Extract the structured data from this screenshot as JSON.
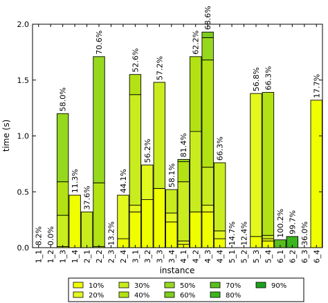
{
  "chart_data": {
    "type": "bar",
    "stacked": true,
    "title": "",
    "xlabel": "instance",
    "ylabel": "time (s)",
    "ylim": [
      0,
      2.0
    ],
    "yticks": [
      "0.0",
      "0.5",
      "1.0",
      "1.5",
      "2.0"
    ],
    "grid": false,
    "legend_position": "bottom",
    "categories": [
      "1_1",
      "1_2",
      "1_3",
      "1_4",
      "2_1",
      "2_2",
      "2_3",
      "2_4",
      "3_1",
      "3_2",
      "3_3",
      "3_4",
      "4_1",
      "4_2",
      "4_3",
      "4_4",
      "5_1",
      "5_2",
      "5_3",
      "5_4",
      "6_1",
      "6_2",
      "6_3",
      "6_4"
    ],
    "labels": [
      "8.2%",
      "0.0%",
      "58.0%",
      "11.3%",
      "37.6%",
      "70.6%",
      "13.2%",
      "44.1%",
      "52.6%",
      "56.2%",
      "57.2%",
      "58.1%",
      "81.4%",
      "62.2%",
      "68.6%",
      "66.3%",
      "14.7%",
      "12.4%",
      "56.8%",
      "66.3%",
      "100.2%",
      "99.7%",
      "36.0%",
      "17.7%"
    ],
    "series": [
      {
        "name": "10%",
        "color": "#f0ff00",
        "values": [
          0,
          0,
          0.01,
          0.47,
          0,
          0,
          0,
          0.08,
          0.32,
          0.43,
          0.53,
          0.23,
          0.03,
          0.32,
          0.32,
          0.08,
          0,
          0,
          0.1,
          0.06,
          0,
          0,
          0,
          1.32
        ]
      },
      {
        "name": "20%",
        "color": "#e3f81e",
        "values": [
          0,
          0,
          0,
          0,
          0,
          0,
          0,
          0.39,
          0.06,
          0.31,
          0,
          0.08,
          0.03,
          0,
          0.06,
          0.07,
          0,
          0,
          1.28,
          0.02,
          0,
          0,
          0,
          0
        ]
      },
      {
        "name": "30%",
        "color": "#c8ec1e",
        "values": [
          0,
          0,
          0.28,
          0,
          0.32,
          0.01,
          0,
          0,
          0.99,
          0,
          0.95,
          0.21,
          0.53,
          0.72,
          0.34,
          0.61,
          0,
          0,
          0,
          0.03,
          0,
          0,
          0,
          0
        ]
      },
      {
        "name": "40%",
        "color": "#b3e214",
        "values": [
          0,
          0,
          0.3,
          0,
          0,
          0.57,
          0,
          0,
          0.18,
          0,
          0,
          0,
          0.18,
          0.67,
          0.96,
          0,
          0,
          0,
          0,
          1.28,
          0,
          0,
          0,
          0
        ]
      },
      {
        "name": "50%",
        "color": "#96d81e",
        "values": [
          0,
          0,
          0.61,
          0,
          0,
          1.13,
          0,
          0,
          0,
          0,
          0,
          0,
          0.02,
          0,
          0.2,
          0,
          0,
          0,
          0,
          0,
          0,
          0,
          0,
          0
        ]
      },
      {
        "name": "60%",
        "color": "#7ccc1e",
        "values": [
          0,
          0,
          0,
          0,
          0,
          0,
          0,
          0,
          0,
          0,
          0,
          0,
          0,
          0,
          0.05,
          0,
          0,
          0,
          0,
          0,
          0,
          0,
          0,
          0
        ]
      },
      {
        "name": "70%",
        "color": "#5abe1e",
        "values": [
          0,
          0,
          0,
          0,
          0,
          0,
          0,
          0,
          0,
          0,
          0,
          0,
          0,
          0,
          0,
          0,
          0,
          0,
          0,
          0,
          0.07,
          0,
          0,
          0
        ]
      },
      {
        "name": "80%",
        "color": "#3cb41e",
        "values": [
          0,
          0,
          0,
          0,
          0,
          0,
          0,
          0,
          0,
          0,
          0,
          0,
          0,
          0,
          0,
          0,
          0,
          0,
          0,
          0,
          0,
          0.1,
          0,
          0
        ]
      },
      {
        "name": "90%",
        "color": "#1ea01e",
        "values": [
          0,
          0,
          0,
          0,
          0,
          0,
          0,
          0,
          0,
          0,
          0,
          0,
          0,
          0,
          0,
          0,
          0,
          0,
          0,
          0,
          0,
          0,
          0,
          0
        ]
      }
    ]
  }
}
